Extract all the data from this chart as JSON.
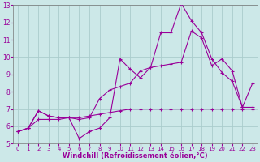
{
  "xlabel": "Windchill (Refroidissement éolien,°C)",
  "bg_color": "#cce8e8",
  "grid_color": "#aacccc",
  "line_color": "#990099",
  "xlim": [
    -0.5,
    23.5
  ],
  "ylim": [
    5,
    13
  ],
  "xticks": [
    0,
    1,
    2,
    3,
    4,
    5,
    6,
    7,
    8,
    9,
    10,
    11,
    12,
    13,
    14,
    15,
    16,
    17,
    18,
    19,
    20,
    21,
    22,
    23
  ],
  "yticks": [
    5,
    6,
    7,
    8,
    9,
    10,
    11,
    12,
    13
  ],
  "line1_x": [
    0,
    1,
    2,
    3,
    4,
    5,
    6,
    7,
    8,
    9,
    10,
    11,
    12,
    13,
    14,
    15,
    16,
    17,
    18,
    19,
    20,
    21,
    22,
    23
  ],
  "line1_y": [
    5.7,
    5.9,
    6.9,
    6.6,
    6.5,
    6.5,
    5.3,
    5.7,
    5.9,
    6.5,
    9.9,
    9.3,
    8.8,
    9.4,
    11.4,
    11.4,
    13.1,
    12.1,
    11.4,
    9.9,
    9.1,
    8.6,
    7.1,
    8.5
  ],
  "line2_x": [
    0,
    1,
    2,
    3,
    4,
    5,
    6,
    7,
    8,
    9,
    10,
    11,
    12,
    13,
    14,
    15,
    16,
    17,
    18,
    19,
    20,
    21,
    22,
    23
  ],
  "line2_y": [
    5.7,
    5.9,
    6.9,
    6.6,
    6.5,
    6.5,
    6.4,
    6.5,
    7.6,
    8.1,
    8.3,
    8.5,
    9.2,
    9.4,
    9.5,
    9.6,
    9.7,
    11.5,
    11.1,
    9.5,
    9.9,
    9.2,
    7.1,
    7.1
  ],
  "line3_x": [
    0,
    1,
    2,
    3,
    4,
    5,
    6,
    7,
    8,
    9,
    10,
    11,
    12,
    13,
    14,
    15,
    16,
    17,
    18,
    19,
    20,
    21,
    22,
    23
  ],
  "line3_y": [
    5.7,
    5.9,
    6.4,
    6.4,
    6.4,
    6.5,
    6.5,
    6.6,
    6.7,
    6.8,
    6.9,
    7.0,
    7.0,
    7.0,
    7.0,
    7.0,
    7.0,
    7.0,
    7.0,
    7.0,
    7.0,
    7.0,
    7.0,
    7.0
  ],
  "xlabel_color": "#990099",
  "xlabel_fontsize": 6,
  "tick_fontsize": 5,
  "tick_color": "#990099",
  "spine_color": "#777777"
}
